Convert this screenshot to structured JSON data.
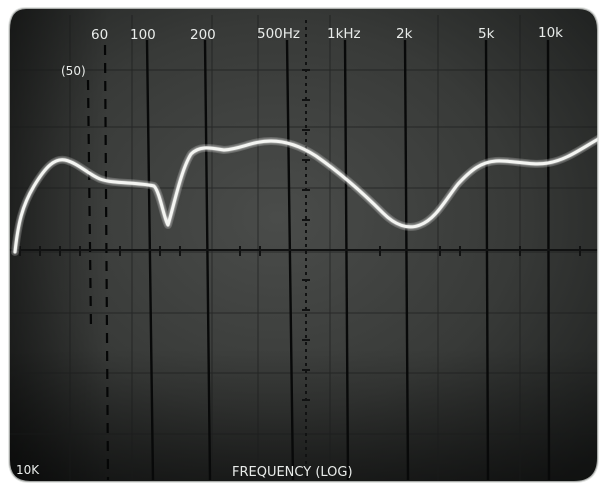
{
  "scope_display": {
    "frequency_scale": [
      {
        "label": "60",
        "pos": 0.1
      },
      {
        "label": "100",
        "pos": 0.21
      },
      {
        "label": "200",
        "pos": 0.33
      },
      {
        "label": "500Hz",
        "pos": 0.5
      },
      {
        "label": "1kHz",
        "pos": 0.6
      },
      {
        "label": "2k",
        "pos": 0.7
      },
      {
        "label": "5k",
        "pos": 0.84
      },
      {
        "label": "10k",
        "pos": 0.95
      }
    ],
    "marker_label": "(50)",
    "axis_label": "FREQUENCY (LOG)",
    "corner_label": "10K",
    "colors": {
      "screen": "#2a2c2a",
      "screen_mid": "#3b3d3b",
      "trace": "#f4f5f2",
      "grid": "#0b0c0c",
      "text": "#e9ecea"
    }
  }
}
